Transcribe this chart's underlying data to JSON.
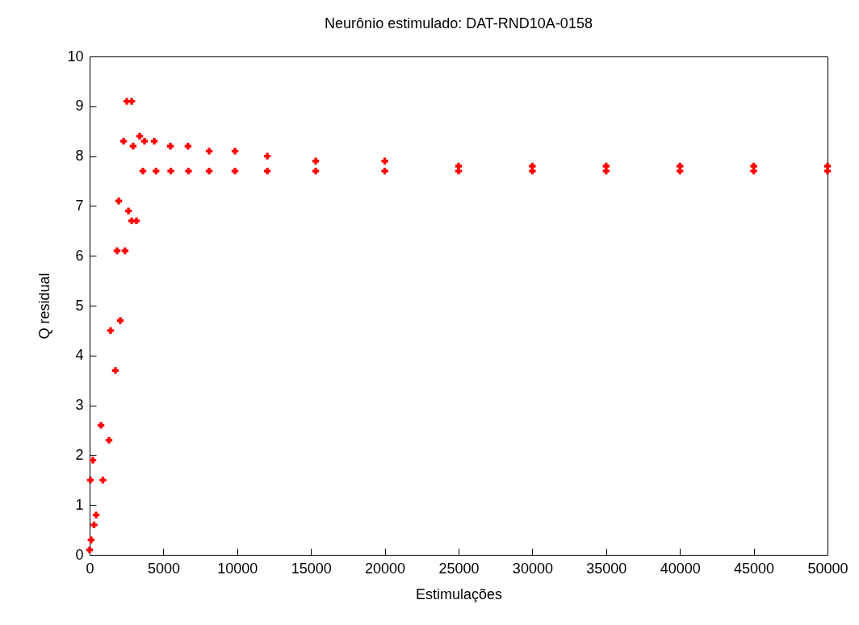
{
  "chart_data": {
    "type": "scatter",
    "title": "Neurônio estimulado: DAT-RND10A-0158",
    "xlabel": "Estimulações",
    "ylabel": "Q residual",
    "xlim": [
      0,
      50000
    ],
    "ylim": [
      0,
      10
    ],
    "xticks": [
      0,
      5000,
      10000,
      15000,
      20000,
      25000,
      30000,
      35000,
      40000,
      45000,
      50000
    ],
    "yticks": [
      0,
      1,
      2,
      3,
      4,
      5,
      6,
      7,
      8,
      9,
      10
    ],
    "marker": "cross",
    "grid": false,
    "legend": false,
    "series": [
      {
        "color": "#ff0000",
        "x": [
          0,
          50,
          100,
          220,
          300,
          440,
          770,
          900,
          1310,
          1420,
          1750,
          1860,
          1970,
          2080,
          2300,
          2400,
          2520,
          2630,
          2850,
          2850,
          2950,
          3170,
          3390,
          3610,
          3720,
          4380,
          4500,
          5470,
          5500,
          6670,
          6700,
          8100,
          8100,
          9850,
          9850,
          12040,
          12040,
          15320,
          15320,
          20000,
          20000,
          25000,
          25000,
          30000,
          30000,
          35000,
          35000,
          40000,
          40000,
          45000,
          45000,
          50000,
          50000
        ],
        "values": [
          0.1,
          1.5,
          0.3,
          1.9,
          0.6,
          0.8,
          2.6,
          1.5,
          2.3,
          4.5,
          3.7,
          6.1,
          7.1,
          4.7,
          8.3,
          6.1,
          9.1,
          6.9,
          9.1,
          6.7,
          8.2,
          6.7,
          8.4,
          7.7,
          8.3,
          8.3,
          7.7,
          8.2,
          7.7,
          8.2,
          7.7,
          8.1,
          7.7,
          8.1,
          7.7,
          8.0,
          7.7,
          7.9,
          7.7,
          7.9,
          7.7,
          7.8,
          7.7,
          7.8,
          7.7,
          7.8,
          7.7,
          7.8,
          7.7,
          7.8,
          7.7,
          7.8,
          7.7
        ]
      }
    ]
  }
}
